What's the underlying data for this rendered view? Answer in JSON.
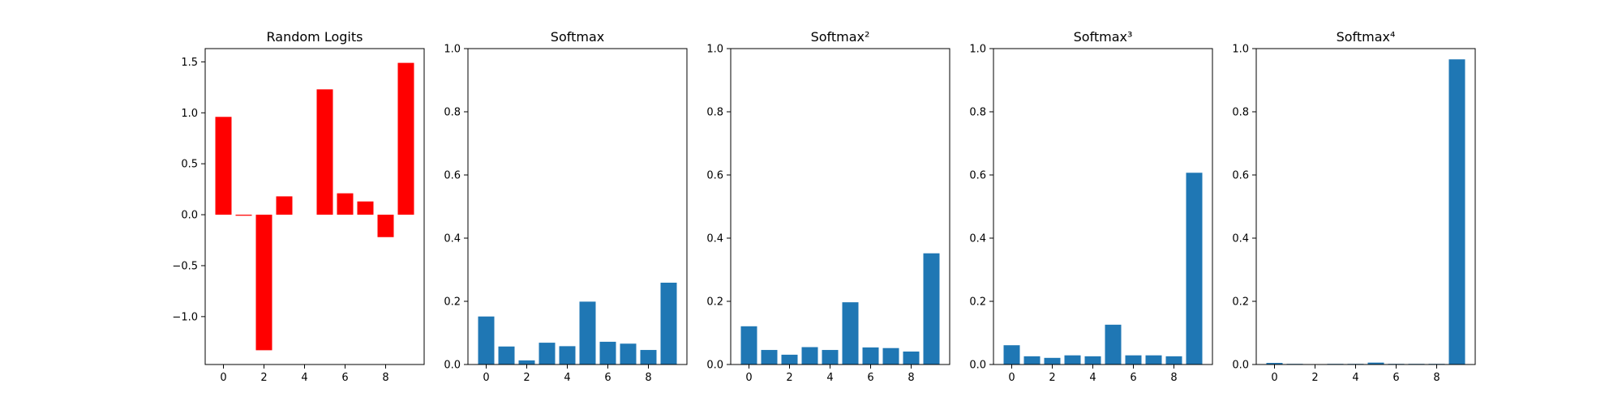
{
  "chart_data": [
    {
      "type": "bar",
      "title": "Random Logits",
      "color": "#ff0000",
      "x": [
        0,
        1,
        2,
        3,
        4,
        5,
        6,
        7,
        8,
        9
      ],
      "values": [
        0.96,
        -0.01,
        -1.33,
        0.18,
        0.0,
        1.23,
        0.21,
        0.13,
        -0.22,
        1.49
      ],
      "ylim": [
        -1.47,
        1.63
      ],
      "xlim": [
        -0.9,
        9.9
      ],
      "xticks": [
        0,
        2,
        4,
        6,
        8
      ],
      "yticks": [
        -1.0,
        -0.5,
        0.0,
        0.5,
        1.0,
        1.5
      ],
      "ytick_labels": [
        "−1.0",
        "−0.5",
        "0.0",
        "0.5",
        "1.0",
        "1.5"
      ],
      "xlabel": "",
      "ylabel": ""
    },
    {
      "type": "bar",
      "title": "Softmax",
      "color": "#1f77b4",
      "x": [
        0,
        1,
        2,
        3,
        4,
        5,
        6,
        7,
        8,
        9
      ],
      "values": [
        0.152,
        0.057,
        0.013,
        0.069,
        0.058,
        0.199,
        0.072,
        0.066,
        0.046,
        0.259
      ],
      "ylim": [
        0,
        1.0
      ],
      "xlim": [
        -0.9,
        9.9
      ],
      "xticks": [
        0,
        2,
        4,
        6,
        8
      ],
      "yticks": [
        0.0,
        0.2,
        0.4,
        0.6,
        0.8,
        1.0
      ],
      "ytick_labels": [
        "0.0",
        "0.2",
        "0.4",
        "0.6",
        "0.8",
        "1.0"
      ],
      "xlabel": "",
      "ylabel": ""
    },
    {
      "type": "bar",
      "title": "Softmax²",
      "color": "#1f77b4",
      "x": [
        0,
        1,
        2,
        3,
        4,
        5,
        6,
        7,
        8,
        9
      ],
      "values": [
        0.121,
        0.046,
        0.031,
        0.055,
        0.046,
        0.197,
        0.054,
        0.052,
        0.041,
        0.352
      ],
      "ylim": [
        0,
        1.0
      ],
      "xlim": [
        -0.9,
        9.9
      ],
      "xticks": [
        0,
        2,
        4,
        6,
        8
      ],
      "yticks": [
        0.0,
        0.2,
        0.4,
        0.6,
        0.8,
        1.0
      ],
      "ytick_labels": [
        "0.0",
        "0.2",
        "0.4",
        "0.6",
        "0.8",
        "1.0"
      ],
      "xlabel": "",
      "ylabel": ""
    },
    {
      "type": "bar",
      "title": "Softmax³",
      "color": "#1f77b4",
      "x": [
        0,
        1,
        2,
        3,
        4,
        5,
        6,
        7,
        8,
        9
      ],
      "values": [
        0.061,
        0.026,
        0.021,
        0.029,
        0.026,
        0.126,
        0.029,
        0.029,
        0.026,
        0.607
      ],
      "ylim": [
        0,
        1.0
      ],
      "xlim": [
        -0.9,
        9.9
      ],
      "xticks": [
        0,
        2,
        4,
        6,
        8
      ],
      "yticks": [
        0.0,
        0.2,
        0.4,
        0.6,
        0.8,
        1.0
      ],
      "ytick_labels": [
        "0.0",
        "0.2",
        "0.4",
        "0.6",
        "0.8",
        "1.0"
      ],
      "xlabel": "",
      "ylabel": ""
    },
    {
      "type": "bar",
      "title": "Softmax⁴",
      "color": "#1f77b4",
      "x": [
        0,
        1,
        2,
        3,
        4,
        5,
        6,
        7,
        8,
        9
      ],
      "values": [
        0.005,
        0.002,
        0.001,
        0.002,
        0.002,
        0.006,
        0.002,
        0.002,
        0.002,
        0.966
      ],
      "ylim": [
        0,
        1.0
      ],
      "xlim": [
        -0.9,
        9.9
      ],
      "xticks": [
        0,
        2,
        4,
        6,
        8
      ],
      "yticks": [
        0.0,
        0.2,
        0.4,
        0.6,
        0.8,
        1.0
      ],
      "ytick_labels": [
        "0.0",
        "0.2",
        "0.4",
        "0.6",
        "0.8",
        "1.0"
      ],
      "xlabel": "",
      "ylabel": ""
    }
  ]
}
